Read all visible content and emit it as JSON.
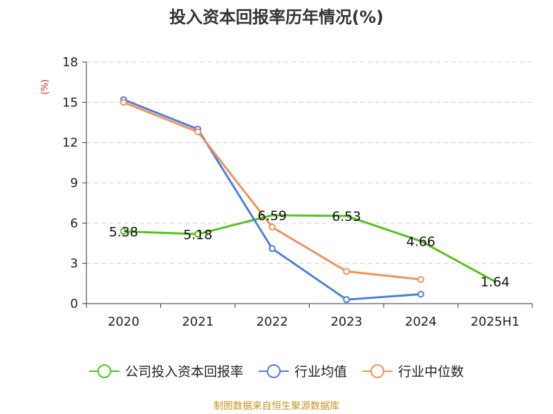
{
  "chart_data": {
    "type": "line",
    "title": "投入资本回报率历年情况(%)",
    "ylabel": "(%)",
    "categories": [
      "2020",
      "2021",
      "2022",
      "2023",
      "2024",
      "2025H1"
    ],
    "ylim": [
      0,
      18
    ],
    "yticks": [
      0,
      3,
      6,
      9,
      12,
      15,
      18
    ],
    "grid": true,
    "legend_position": "bottom",
    "series": [
      {
        "name": "公司投入资本回报率",
        "color": "#52c41a",
        "values": [
          5.38,
          5.18,
          6.59,
          6.53,
          4.66,
          1.64
        ],
        "labels": [
          "5.38",
          "5.18",
          "6.59",
          "6.53",
          "4.66",
          "1.64"
        ],
        "show_markers": [
          true,
          true,
          false,
          false,
          false,
          false
        ]
      },
      {
        "name": "行业均值",
        "color": "#4a7fe0",
        "values": [
          15.2,
          13.0,
          4.1,
          0.3,
          0.7,
          null
        ]
      },
      {
        "name": "行业中位数",
        "color": "#f5905a",
        "values": [
          15.0,
          12.8,
          5.7,
          2.4,
          1.8,
          null
        ]
      }
    ]
  },
  "source": "制图数据来自恒生聚源数据库"
}
